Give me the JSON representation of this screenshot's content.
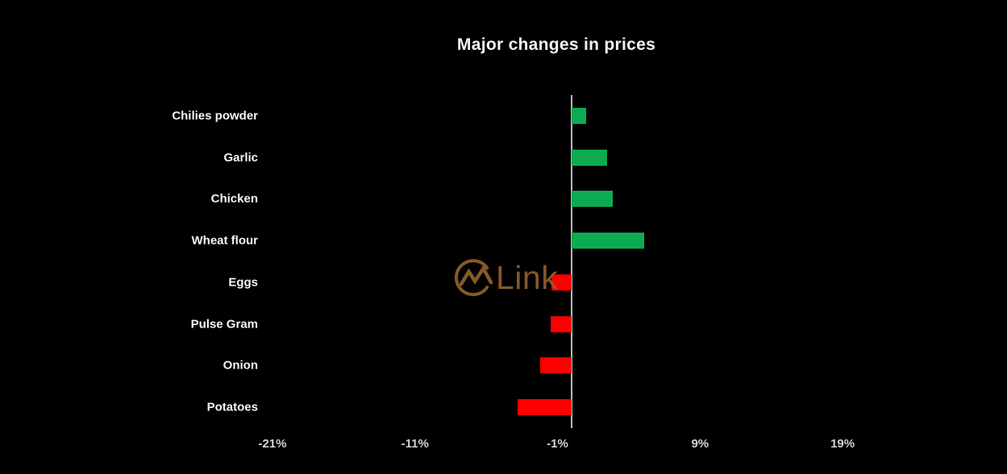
{
  "chart_data": {
    "type": "bar",
    "orientation": "horizontal",
    "title": "Major changes in prices",
    "categories": [
      "Chilies powder",
      "Garlic",
      "Chicken",
      "Wheat flour",
      "Eggs",
      "Pulse Gram",
      "Onion",
      "Potatoes"
    ],
    "values": [
      1.0,
      2.5,
      2.9,
      5.1,
      -1.4,
      -1.5,
      -2.2,
      -3.8
    ],
    "unit": "%",
    "x_ticks": [
      "-21%",
      "-11%",
      "-1%",
      "9%",
      "19%"
    ],
    "x_tick_values": [
      -21,
      -11,
      -1,
      9,
      19
    ],
    "xlim": [
      -26,
      25
    ],
    "grid": false,
    "legend": false,
    "bar_color_rule": "positive bars green, negative bars red",
    "xlabel": "",
    "ylabel": ""
  },
  "colors": {
    "background": "#000000",
    "positive_bar": "#0cab51",
    "negative_bar": "#fe0000",
    "axis_line": "#b8b8b8",
    "title_text": "#f2f2f2",
    "category_text": "#f5f5f5",
    "tick_text": "#d2d2d2",
    "watermark": "#8d5e2a"
  },
  "watermark": {
    "text": "Link",
    "icon": "mountain-circle-logo"
  }
}
